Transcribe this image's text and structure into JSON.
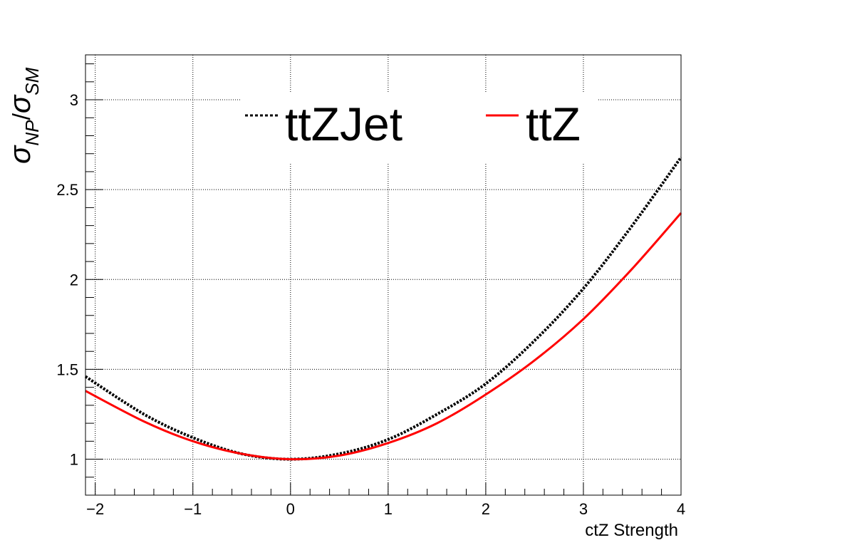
{
  "chart_data": {
    "type": "line",
    "xlabel": "ctZ Strength",
    "ylabel": {
      "base": "σ",
      "sub1": "NP",
      "sep": "/",
      "base2": "σ",
      "sub2": "SM"
    },
    "xlim": [
      -2.1,
      4.0
    ],
    "ylim": [
      0.8,
      3.25
    ],
    "xticks": [
      -2,
      -1,
      0,
      1,
      2,
      3,
      4
    ],
    "xtick_labels": [
      "−2",
      "−1",
      "0",
      "1",
      "2",
      "3",
      "4"
    ],
    "yticks": [
      1,
      1.5,
      2,
      2.5,
      3
    ],
    "ytick_labels": [
      "1",
      "1.5",
      "2",
      "2.5",
      "3"
    ],
    "grid": true,
    "legend_position": "top-center",
    "series": [
      {
        "name": "ttZJet",
        "color": "#000000",
        "style": "dotted",
        "x": [
          -2.1,
          -1.5,
          -1.0,
          -0.5,
          0.0,
          0.5,
          1.0,
          1.5,
          2.0,
          2.5,
          3.0,
          3.5,
          4.0
        ],
        "y": [
          1.46,
          1.25,
          1.12,
          1.03,
          1.0,
          1.03,
          1.11,
          1.25,
          1.42,
          1.66,
          1.95,
          2.3,
          2.68
        ]
      },
      {
        "name": "ttZ",
        "color": "#ff0000",
        "style": "solid",
        "x": [
          -2.1,
          -1.5,
          -1.0,
          -0.5,
          0.0,
          0.5,
          1.0,
          1.5,
          2.0,
          2.5,
          3.0,
          3.5,
          4.0
        ],
        "y": [
          1.38,
          1.21,
          1.1,
          1.03,
          1.0,
          1.02,
          1.09,
          1.2,
          1.36,
          1.55,
          1.78,
          2.06,
          2.37
        ]
      }
    ]
  }
}
